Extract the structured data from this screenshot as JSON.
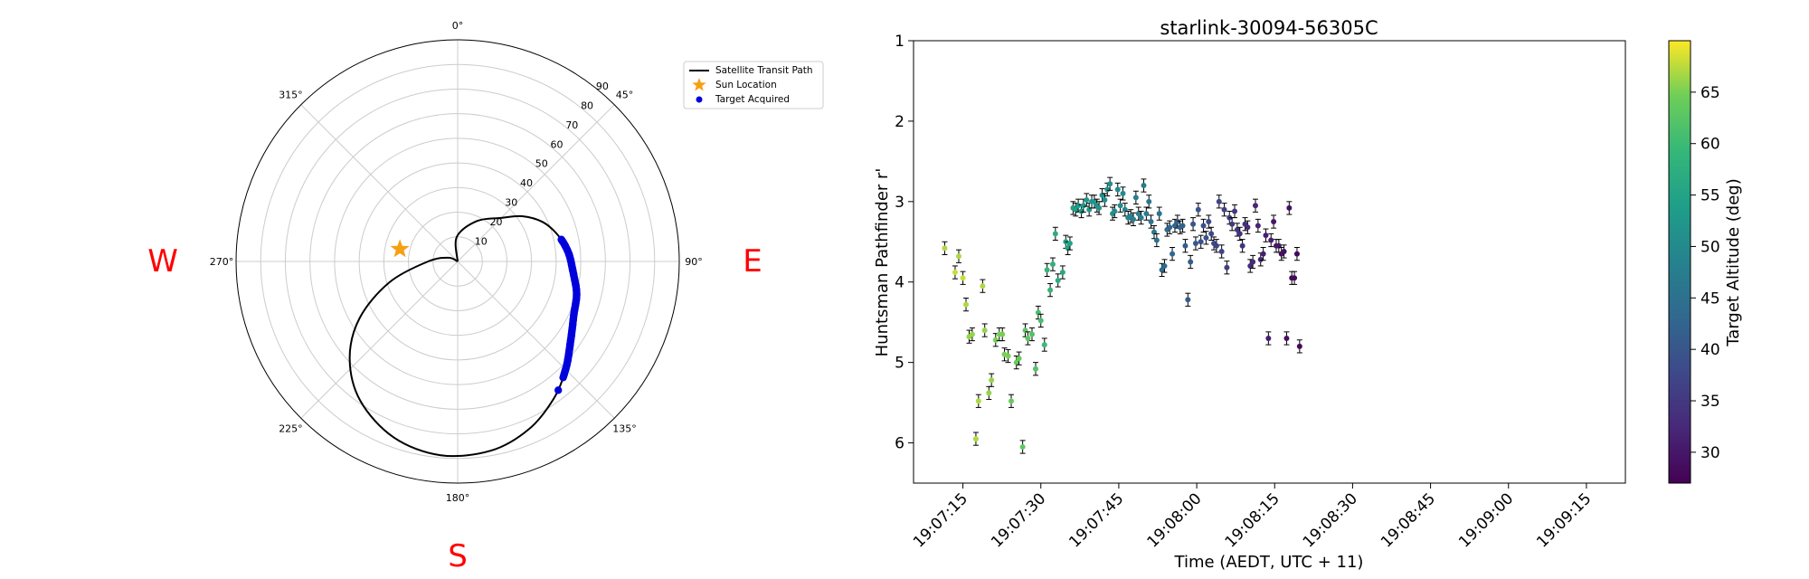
{
  "chart_data": [
    {
      "type": "polar",
      "angle_ticks": [
        "0°",
        "45°",
        "90°",
        "135°",
        "180°",
        "225°",
        "270°",
        "315°"
      ],
      "radial_ticks": [
        "10",
        "20",
        "30",
        "40",
        "50",
        "60",
        "70",
        "80",
        "90"
      ],
      "compass": {
        "W": "W",
        "E": "E",
        "S": "S"
      },
      "legend": {
        "position": "top-right",
        "items": [
          "Satellite Transit Path",
          "Sun Location",
          "Target Acquired"
        ]
      },
      "sun": {
        "azimuth_deg": 282,
        "zenith_deg": 24
      },
      "path_control_points": [
        {
          "az": 315,
          "zen": 0
        },
        {
          "az": 358,
          "zen": 10
        },
        {
          "az": 25,
          "zen": 18
        },
        {
          "az": 45,
          "zen": 25
        },
        {
          "az": 55,
          "zen": 32
        },
        {
          "az": 65,
          "zen": 38
        },
        {
          "az": 75,
          "zen": 42
        },
        {
          "az": 85,
          "zen": 45
        },
        {
          "az": 95,
          "zen": 47
        },
        {
          "az": 105,
          "zen": 50
        },
        {
          "az": 115,
          "zen": 52
        },
        {
          "az": 125,
          "zen": 56
        },
        {
          "az": 135,
          "zen": 62
        },
        {
          "az": 145,
          "zen": 68
        },
        {
          "az": 157,
          "zen": 74
        },
        {
          "az": 170,
          "zen": 78
        },
        {
          "az": 185,
          "zen": 79
        },
        {
          "az": 200,
          "zen": 76
        },
        {
          "az": 215,
          "zen": 69
        },
        {
          "az": 228,
          "zen": 59
        },
        {
          "az": 240,
          "zen": 46
        },
        {
          "az": 253,
          "zen": 29
        },
        {
          "az": 270,
          "zen": 12
        },
        {
          "az": 292,
          "zen": 4
        },
        {
          "az": 315,
          "zen": 0
        }
      ],
      "acquired_arc": {
        "az_start": 78,
        "az_end": 138,
        "count": 130,
        "last_marker": {
          "az": 142,
          "zen": 70
        }
      },
      "colors": {
        "path": "#000000",
        "sun": "#f5a014",
        "target": "#0000dd",
        "compass": "#ff0000"
      }
    },
    {
      "type": "scatter",
      "title": "starlink-30094-56305C",
      "xlabel": "Time (AEDT, UTC + 11)",
      "ylabel": "Huntsman Pathfinder r'",
      "ylim": [
        6.5,
        1.0
      ],
      "y_inverted": true,
      "yticks": [
        1,
        2,
        3,
        4,
        5,
        6
      ],
      "xlim_seconds_after_19_07_00": [
        5.5,
        142.5
      ],
      "xticks": [
        {
          "t": 15,
          "label": "19:07:15"
        },
        {
          "t": 30,
          "label": "19:07:30"
        },
        {
          "t": 45,
          "label": "19:07:45"
        },
        {
          "t": 60,
          "label": "19:08:00"
        },
        {
          "t": 75,
          "label": "19:08:15"
        },
        {
          "t": 90,
          "label": "19:08:30"
        },
        {
          "t": 105,
          "label": "19:08:45"
        },
        {
          "t": 120,
          "label": "19:09:00"
        },
        {
          "t": 135,
          "label": "19:09:15"
        }
      ],
      "colorbar": {
        "label": "Target Altitude (deg)",
        "range": [
          27,
          70
        ],
        "ticks": [
          30,
          35,
          40,
          45,
          50,
          55,
          60,
          65
        ]
      },
      "error_bar": 0.08,
      "points": [
        [
          11.5,
          3.58,
          67
        ],
        [
          13.5,
          3.88,
          68
        ],
        [
          14.2,
          3.68,
          67
        ],
        [
          15.0,
          3.95,
          68
        ],
        [
          15.6,
          4.28,
          67
        ],
        [
          16.2,
          4.68,
          66
        ],
        [
          16.8,
          4.65,
          66
        ],
        [
          17.5,
          5.95,
          67
        ],
        [
          18.0,
          5.48,
          67
        ],
        [
          18.8,
          4.05,
          67
        ],
        [
          19.2,
          4.6,
          66
        ],
        [
          20.0,
          5.38,
          66
        ],
        [
          20.5,
          5.22,
          66
        ],
        [
          21.3,
          4.72,
          65
        ],
        [
          22.0,
          4.65,
          65
        ],
        [
          22.6,
          4.65,
          65
        ],
        [
          23.0,
          4.9,
          65
        ],
        [
          23.7,
          4.92,
          65
        ],
        [
          24.3,
          5.48,
          64
        ],
        [
          25.3,
          5.0,
          64
        ],
        [
          25.8,
          4.95,
          64
        ],
        [
          26.5,
          6.05,
          63
        ],
        [
          27.0,
          4.6,
          63
        ],
        [
          27.5,
          4.7,
          63
        ],
        [
          28.3,
          4.65,
          62
        ],
        [
          29.0,
          5.08,
          62
        ],
        [
          29.5,
          4.38,
          61
        ],
        [
          30.0,
          4.48,
          61
        ],
        [
          30.7,
          4.78,
          60
        ],
        [
          31.2,
          3.85,
          59
        ],
        [
          31.8,
          4.1,
          59
        ],
        [
          32.3,
          3.78,
          58
        ],
        [
          32.8,
          3.4,
          57
        ],
        [
          33.3,
          3.98,
          57
        ],
        [
          34.2,
          3.88,
          56
        ],
        [
          34.8,
          3.5,
          55
        ],
        [
          35.2,
          3.58,
          55
        ],
        [
          35.6,
          3.52,
          55
        ],
        [
          36.2,
          3.08,
          54
        ],
        [
          36.7,
          3.1,
          54
        ],
        [
          37.2,
          3.05,
          54
        ],
        [
          37.8,
          3.12,
          53
        ],
        [
          38.2,
          3.05,
          53
        ],
        [
          38.8,
          2.98,
          53
        ],
        [
          39.3,
          3.1,
          53
        ],
        [
          39.8,
          3.0,
          52
        ],
        [
          40.3,
          3.0,
          52
        ],
        [
          40.8,
          3.05,
          52
        ],
        [
          41.2,
          3.08,
          52
        ],
        [
          41.8,
          2.92,
          51
        ],
        [
          42.3,
          2.98,
          51
        ],
        [
          42.8,
          2.85,
          51
        ],
        [
          43.3,
          2.78,
          51
        ],
        [
          43.8,
          3.15,
          51
        ],
        [
          44.2,
          3.12,
          50
        ],
        [
          44.8,
          2.85,
          50
        ],
        [
          45.3,
          3.05,
          50
        ],
        [
          45.8,
          2.9,
          50
        ],
        [
          46.2,
          3.1,
          49
        ],
        [
          46.8,
          3.2,
          49
        ],
        [
          47.3,
          3.18,
          49
        ],
        [
          47.8,
          3.22,
          48
        ],
        [
          48.3,
          2.95,
          48
        ],
        [
          48.8,
          3.15,
          48
        ],
        [
          49.3,
          3.2,
          47
        ],
        [
          49.8,
          2.8,
          47
        ],
        [
          50.3,
          3.15,
          47
        ],
        [
          50.8,
          3.0,
          46
        ],
        [
          51.2,
          3.25,
          46
        ],
        [
          51.8,
          3.38,
          46
        ],
        [
          52.3,
          3.48,
          45
        ],
        [
          52.8,
          3.15,
          45
        ],
        [
          53.3,
          3.85,
          44
        ],
        [
          53.8,
          3.8,
          44
        ],
        [
          54.3,
          3.35,
          44
        ],
        [
          54.8,
          3.32,
          43
        ],
        [
          55.3,
          3.65,
          43
        ],
        [
          55.8,
          3.3,
          43
        ],
        [
          56.3,
          3.25,
          42
        ],
        [
          56.8,
          3.32,
          42
        ],
        [
          57.3,
          3.3,
          42
        ],
        [
          57.8,
          3.55,
          41
        ],
        [
          58.3,
          4.22,
          41
        ],
        [
          58.8,
          3.75,
          41
        ],
        [
          59.3,
          3.28,
          40
        ],
        [
          59.8,
          3.52,
          40
        ],
        [
          60.3,
          3.1,
          40
        ],
        [
          60.8,
          3.5,
          39
        ],
        [
          61.3,
          3.3,
          39
        ],
        [
          61.8,
          3.45,
          39
        ],
        [
          62.3,
          3.25,
          38
        ],
        [
          62.8,
          3.4,
          38
        ],
        [
          63.3,
          3.52,
          38
        ],
        [
          63.8,
          3.55,
          37
        ],
        [
          64.3,
          3.0,
          37
        ],
        [
          64.8,
          3.62,
          37
        ],
        [
          65.3,
          3.1,
          36
        ],
        [
          65.8,
          3.82,
          36
        ],
        [
          66.3,
          3.2,
          36
        ],
        [
          66.8,
          3.28,
          35
        ],
        [
          67.3,
          3.12,
          35
        ],
        [
          67.8,
          3.35,
          35
        ],
        [
          68.3,
          3.4,
          34
        ],
        [
          68.8,
          3.55,
          34
        ],
        [
          69.3,
          3.28,
          34
        ],
        [
          69.8,
          3.32,
          33
        ],
        [
          70.3,
          3.8,
          33
        ],
        [
          70.8,
          3.75,
          33
        ],
        [
          71.3,
          3.05,
          32
        ],
        [
          71.8,
          3.3,
          32
        ],
        [
          72.3,
          3.72,
          32
        ],
        [
          72.8,
          3.65,
          31
        ],
        [
          73.3,
          3.42,
          31
        ],
        [
          73.8,
          4.7,
          31
        ],
        [
          74.3,
          3.48,
          31
        ],
        [
          74.8,
          3.25,
          30
        ],
        [
          75.3,
          3.55,
          30
        ],
        [
          75.8,
          3.55,
          30
        ],
        [
          76.3,
          3.65,
          29
        ],
        [
          76.8,
          3.62,
          29
        ],
        [
          77.3,
          4.7,
          29
        ],
        [
          77.8,
          3.08,
          29
        ],
        [
          78.3,
          3.95,
          28
        ],
        [
          78.8,
          3.95,
          28
        ],
        [
          79.3,
          3.65,
          28
        ],
        [
          79.8,
          4.8,
          28
        ]
      ],
      "colors": {
        "errorbar": "#000000"
      }
    }
  ]
}
